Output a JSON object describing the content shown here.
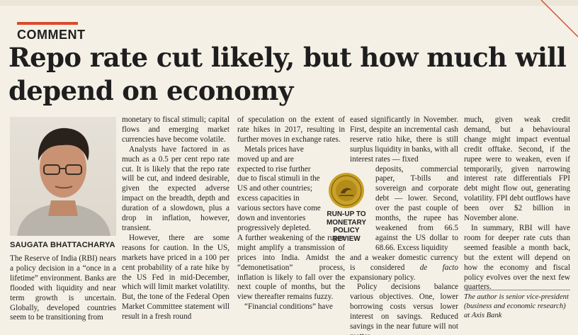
{
  "kicker": "COMMENT",
  "headline": "Repo rate cut likely, but how much will depend on economy",
  "byline": "SAUGATA BHATTACHARYA",
  "sidebar": {
    "line1": "RUN-UP TO",
    "line2": "MONETARY",
    "line3": "POLICY REVIEW"
  },
  "col1": {
    "p1": "The Reserve of India (RBI) nears a policy decision in a “once in a lifetime” environment. Banks are flooded with liquidity and near term growth is uncertain. Globally, developed countries seem to be transitioning from"
  },
  "col2": {
    "p1": "monetary to fiscal stimuli; capital flows and emerging market currencies have become volatile.",
    "p2": "Analysts have factored in as much as a 0.5 per cent repo rate cut. It is likely that the repo rate will be cut, and indeed desirable, given the expected adverse impact on the breadth, depth and duration of a slowdown, plus a drop in inflation, however, transient.",
    "p3": "However, there are some reasons for caution. In the US, markets have priced in a 100 per cent probability of a rate hike by the US Fed in mid-December, which will limit market volatility. But, the tone of the Federal Open Market Committee statement will result in a fresh round"
  },
  "col3": {
    "p1": "of speculation on the extent of rate hikes in 2017, resulting in further moves in exchange rates.",
    "p2a": "Metals prices have moved up and are expected to rise further due to fiscal stimuli in the US and other countries; excess capacities in various sectors have come down and inventories progressively depleted.",
    "p2b": "A further weakening of the rupee might amplify a transmission of prices into India. Amidst the “demonetisation” process, inflation is likely to fall over the next couple of months, but the view thereafter remains fuzzy.",
    "p3": "“Financial conditions” have"
  },
  "col4": {
    "p1a": "eased significantly in November. First, despite an incremental cash reserve ratio hike, there is still surplus liquidity in banks, with all interest rates — fixed",
    "p1b": "deposits, commercial paper, T-bills and sovereign and corporate debt — lower. Second, over the past couple of months, the rupee has weakened from 66.5 against the US dollar to 68.66. Excess liquidity",
    "p1c": "and a weaker domestic currency is considered",
    "p1c_em": "de facto",
    "p1c_end": "expansionary policy.",
    "p2": "Policy decisions balance various objectives. One, lower borrowing costs versus lower interest on savings. Reduced savings in the near future will not matter"
  },
  "col5": {
    "p1": "much, given weak credit demand, but a behavioural change might impact eventual credit offtake. Second, if the rupee were to weaken, even if temporarily, given narrowing interest rate differentials FPI debt might flow out, generating volatility. FPI debt outflows have been over $2 billion in November alone.",
    "p2": "In summary, RBI will have room for deeper rate cuts than seemed feasible a month back, but the extent will depend on how the economy and fiscal policy evolves over the next few quarters."
  },
  "bio": "The author is senior vice-president (business and economic research) at Axis Bank"
}
